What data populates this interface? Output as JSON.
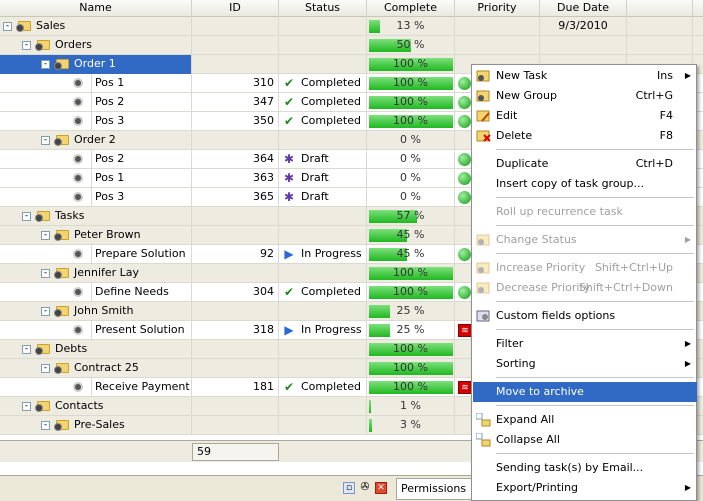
{
  "columns": [
    "Name",
    "ID",
    "Status",
    "Complete",
    "Priority",
    "Due Date"
  ],
  "colors": {
    "selection": "#316ac5",
    "group_row": "#eeece1",
    "progress": "#2cc12c"
  },
  "rows": [
    {
      "name": "Sales",
      "level": 0,
      "kind": "group",
      "expand": "-",
      "id": "",
      "status": "",
      "status_icon": "",
      "complete": "13 %",
      "complete_fill": 0.13,
      "priority": "",
      "due": "9/3/2010"
    },
    {
      "name": "Orders",
      "level": 1,
      "kind": "group",
      "expand": "-",
      "id": "",
      "status": "",
      "status_icon": "",
      "complete": "50 %",
      "complete_fill": 0.5,
      "priority": "",
      "due": ""
    },
    {
      "name": "Order 1",
      "level": 2,
      "kind": "group",
      "expand": "-",
      "id": "",
      "status": "",
      "status_icon": "",
      "complete": "100 %",
      "complete_fill": 1,
      "priority": "",
      "due": "",
      "selected": true
    },
    {
      "name": "Pos 1",
      "level": 3,
      "kind": "task",
      "id": "310",
      "status": "Completed",
      "status_icon": "check-icon",
      "complete": "100 %",
      "complete_fill": 1,
      "priority": "green",
      "due": ""
    },
    {
      "name": "Pos 2",
      "level": 3,
      "kind": "task",
      "id": "347",
      "status": "Completed",
      "status_icon": "check-icon",
      "complete": "100 %",
      "complete_fill": 1,
      "priority": "green",
      "due": ""
    },
    {
      "name": "Pos 3",
      "level": 3,
      "kind": "task",
      "id": "350",
      "status": "Completed",
      "status_icon": "check-icon",
      "complete": "100 %",
      "complete_fill": 1,
      "priority": "green",
      "due": ""
    },
    {
      "name": "Order 2",
      "level": 2,
      "kind": "group",
      "expand": "-",
      "id": "",
      "status": "",
      "status_icon": "",
      "complete": "0 %",
      "complete_fill": 0,
      "priority": "",
      "due": ""
    },
    {
      "name": "Pos 2",
      "level": 3,
      "kind": "task",
      "id": "364",
      "status": "Draft",
      "status_icon": "draft-icon",
      "complete": "0 %",
      "complete_fill": 0,
      "priority": "green",
      "due": ""
    },
    {
      "name": "Pos 1",
      "level": 3,
      "kind": "task",
      "id": "363",
      "status": "Draft",
      "status_icon": "draft-icon",
      "complete": "0 %",
      "complete_fill": 0,
      "priority": "green",
      "due": ""
    },
    {
      "name": "Pos 3",
      "level": 3,
      "kind": "task",
      "id": "365",
      "status": "Draft",
      "status_icon": "draft-icon",
      "complete": "0 %",
      "complete_fill": 0,
      "priority": "green",
      "due": ""
    },
    {
      "name": "Tasks",
      "level": 1,
      "kind": "group",
      "expand": "-",
      "id": "",
      "status": "",
      "status_icon": "",
      "complete": "57 %",
      "complete_fill": 0.57,
      "priority": "",
      "due": ""
    },
    {
      "name": "Peter Brown",
      "level": 2,
      "kind": "group",
      "expand": "-",
      "id": "",
      "status": "",
      "status_icon": "",
      "complete": "45 %",
      "complete_fill": 0.45,
      "priority": "",
      "due": ""
    },
    {
      "name": "Prepare Solution",
      "level": 3,
      "kind": "task",
      "id": "92",
      "status": "In Progress",
      "status_icon": "play-icon",
      "complete": "45 %",
      "complete_fill": 0.45,
      "priority": "green",
      "due": ""
    },
    {
      "name": "Jennifer Lay",
      "level": 2,
      "kind": "group",
      "expand": "-",
      "id": "",
      "status": "",
      "status_icon": "",
      "complete": "100 %",
      "complete_fill": 1,
      "priority": "",
      "due": ""
    },
    {
      "name": "Define Needs",
      "level": 3,
      "kind": "task",
      "id": "304",
      "status": "Completed",
      "status_icon": "check-icon",
      "complete": "100 %",
      "complete_fill": 1,
      "priority": "green",
      "due": ""
    },
    {
      "name": "John Smith",
      "level": 2,
      "kind": "group",
      "expand": "-",
      "id": "",
      "status": "",
      "status_icon": "",
      "complete": "25 %",
      "complete_fill": 0.25,
      "priority": "",
      "due": ""
    },
    {
      "name": "Present Solution",
      "level": 3,
      "kind": "task",
      "id": "318",
      "status": "In Progress",
      "status_icon": "play-icon",
      "complete": "25 %",
      "complete_fill": 0.25,
      "priority": "red",
      "due": ""
    },
    {
      "name": "Debts",
      "level": 1,
      "kind": "group",
      "expand": "-",
      "id": "",
      "status": "",
      "status_icon": "",
      "complete": "100 %",
      "complete_fill": 1,
      "priority": "",
      "due": ""
    },
    {
      "name": "Contract 25",
      "level": 2,
      "kind": "group",
      "expand": "-",
      "id": "",
      "status": "",
      "status_icon": "",
      "complete": "100 %",
      "complete_fill": 1,
      "priority": "",
      "due": ""
    },
    {
      "name": "Receive Payment",
      "level": 3,
      "kind": "task",
      "id": "181",
      "status": "Completed",
      "status_icon": "check-icon",
      "complete": "100 %",
      "complete_fill": 1,
      "priority": "red",
      "due": ""
    },
    {
      "name": "Contacts",
      "level": 1,
      "kind": "group",
      "expand": "-",
      "id": "",
      "status": "",
      "status_icon": "",
      "complete": "1 %",
      "complete_fill": 0.01,
      "priority": "",
      "due": ""
    },
    {
      "name": "Pre-Sales",
      "level": 2,
      "kind": "group",
      "expand": "-",
      "id": "",
      "status": "",
      "status_icon": "",
      "complete": "3 %",
      "complete_fill": 0.03,
      "priority": "",
      "due": ""
    }
  ],
  "footer": {
    "id_total": "59"
  },
  "bottom": {
    "permissions_tab": "Permissions"
  },
  "menu": [
    {
      "label": "New Task",
      "shortcut": "Ins",
      "submenu": true,
      "icon": "new-task-icon"
    },
    {
      "label": "New Group",
      "shortcut": "Ctrl+G",
      "icon": "new-group-icon"
    },
    {
      "label": "Edit",
      "shortcut": "F4",
      "icon": "edit-icon"
    },
    {
      "label": "Delete",
      "shortcut": "F8",
      "icon": "delete-icon"
    },
    {
      "sep": true
    },
    {
      "label": "Duplicate",
      "shortcut": "Ctrl+D"
    },
    {
      "label": "Insert copy of task group...",
      "shortcut": ""
    },
    {
      "sep": true
    },
    {
      "label": "Roll up recurrence task",
      "shortcut": "",
      "disabled": true
    },
    {
      "sep": true
    },
    {
      "label": "Change Status",
      "shortcut": "",
      "disabled": true,
      "submenu": true,
      "icon": "status-icon"
    },
    {
      "sep": true
    },
    {
      "label": "Increase Priority",
      "shortcut": "Shift+Ctrl+Up",
      "disabled": true,
      "icon": "priority-up-icon"
    },
    {
      "label": "Decrease Priority",
      "shortcut": "Shift+Ctrl+Down",
      "disabled": true,
      "icon": "priority-down-icon"
    },
    {
      "sep": true
    },
    {
      "label": "Custom fields options",
      "shortcut": "",
      "icon": "custom-fields-icon"
    },
    {
      "sep": true
    },
    {
      "label": "Filter",
      "shortcut": "",
      "submenu": true
    },
    {
      "label": "Sorting",
      "shortcut": "",
      "submenu": true
    },
    {
      "sep": true
    },
    {
      "label": "Move to archive",
      "shortcut": "",
      "highlighted": true
    },
    {
      "sep": true
    },
    {
      "label": "Expand All",
      "shortcut": "",
      "icon": "expand-all-icon"
    },
    {
      "label": "Collapse All",
      "shortcut": "",
      "icon": "collapse-all-icon"
    },
    {
      "sep": true
    },
    {
      "label": "Sending task(s) by Email...",
      "shortcut": ""
    },
    {
      "label": "Export/Printing",
      "shortcut": "",
      "submenu": true
    }
  ]
}
